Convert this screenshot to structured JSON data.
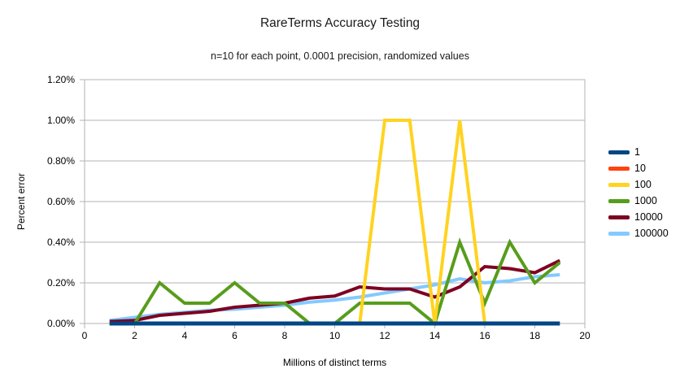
{
  "chart_data": {
    "type": "line",
    "title": "RareTerms Accuracy Testing",
    "subtitle": "n=10 for each point, 0.0001 precision, randomized values",
    "xlabel": "Millions of distinct terms",
    "ylabel": "Percent error",
    "xlim": [
      0,
      20
    ],
    "ylim": [
      0,
      1.2
    ],
    "y_unit": "%",
    "grid": "horizontal-only",
    "legend_position": "right",
    "draw_order": "reversed-first-series-on-top",
    "gridline_color": "#b3b3b3",
    "x_ticks": {
      "values": [
        0,
        2,
        4,
        6,
        8,
        10,
        12,
        14,
        16,
        18,
        20
      ],
      "labels": [
        "0",
        "2",
        "4",
        "6",
        "8",
        "10",
        "12",
        "14",
        "16",
        "18",
        "20"
      ]
    },
    "y_ticks": {
      "values": [
        0,
        0.2,
        0.4,
        0.6,
        0.8,
        1.0,
        1.2
      ],
      "labels": [
        "0.00%",
        "0.20%",
        "0.40%",
        "0.60%",
        "0.80%",
        "1.00%",
        "1.20%"
      ]
    },
    "x": [
      1,
      2,
      3,
      4,
      5,
      6,
      7,
      8,
      9,
      10,
      11,
      12,
      13,
      14,
      15,
      16,
      17,
      18,
      19
    ],
    "series": [
      {
        "name": "1",
        "color": "#004586",
        "values": [
          0,
          0,
          0,
          0,
          0,
          0,
          0,
          0,
          0,
          0,
          0,
          0,
          0,
          0,
          0,
          0,
          0,
          0,
          0
        ]
      },
      {
        "name": "10",
        "color": "#FF420E",
        "values": [
          0,
          0,
          0,
          0,
          0,
          0,
          0,
          0,
          0,
          0,
          0,
          0,
          0,
          0,
          0,
          0,
          0,
          0,
          0
        ]
      },
      {
        "name": "100",
        "color": "#FFD320",
        "values": [
          0,
          0,
          0,
          0,
          0,
          0,
          0,
          0,
          0,
          0,
          0,
          1.0,
          1.0,
          0,
          1.0,
          0,
          0,
          0,
          0
        ]
      },
      {
        "name": "1000",
        "color": "#579D1C",
        "values": [
          0,
          0,
          0.2,
          0.1,
          0.1,
          0.2,
          0.1,
          0.1,
          0,
          0,
          0.1,
          0.1,
          0.1,
          0,
          0.4,
          0.1,
          0.4,
          0.2,
          0.3
        ]
      },
      {
        "name": "10000",
        "color": "#7E0021",
        "values": [
          0.01,
          0.015,
          0.04,
          0.05,
          0.06,
          0.08,
          0.09,
          0.1,
          0.125,
          0.135,
          0.18,
          0.17,
          0.17,
          0.13,
          0.18,
          0.28,
          0.27,
          0.25,
          0.31
        ]
      },
      {
        "name": "100000",
        "color": "#83CAFF",
        "values": [
          0.015,
          0.03,
          0.045,
          0.055,
          0.065,
          0.07,
          0.08,
          0.09,
          0.105,
          0.115,
          0.13,
          0.15,
          0.17,
          0.19,
          0.22,
          0.2,
          0.21,
          0.23,
          0.24
        ]
      }
    ]
  }
}
